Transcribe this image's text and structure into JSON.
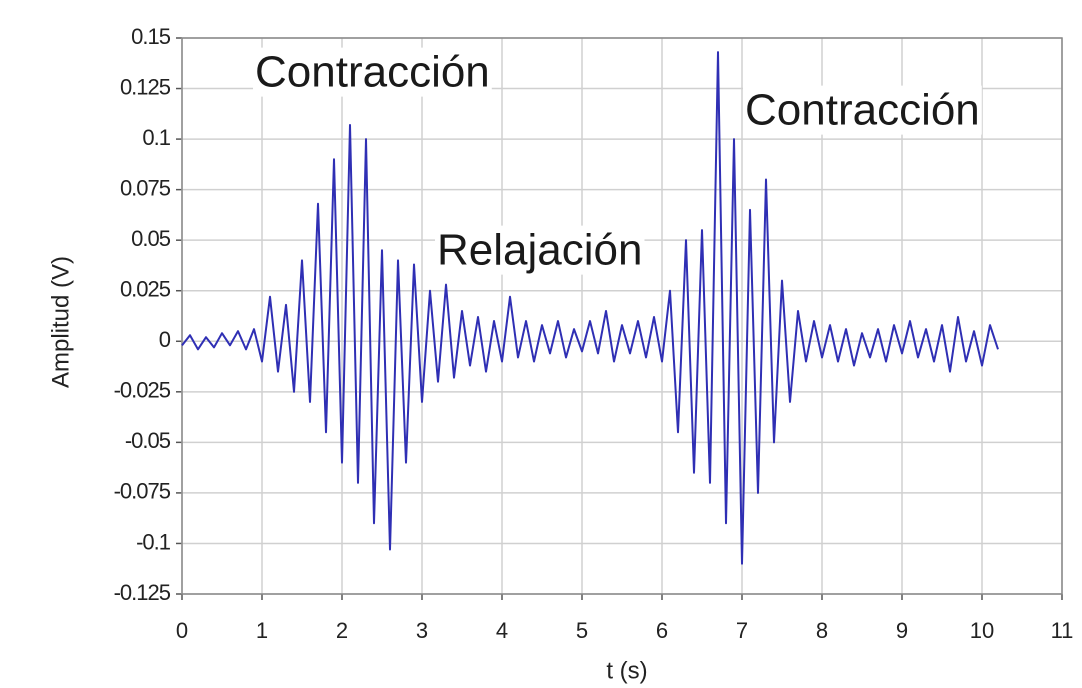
{
  "chart_data": {
    "type": "line",
    "x_label": "t (s)",
    "y_label": "Amplitud (V)",
    "annotations": [
      "Contracción",
      "Relajación",
      "Contracción"
    ],
    "x": [
      0,
      0.1,
      0.2,
      0.3,
      0.4,
      0.5,
      0.6,
      0.7,
      0.8,
      0.9,
      1,
      1.1,
      1.2,
      1.3,
      1.4,
      1.5,
      1.6,
      1.7,
      1.8,
      1.9,
      2,
      2.1,
      2.2,
      2.3,
      2.4,
      2.5,
      2.6,
      2.7,
      2.8,
      2.9,
      3,
      3.1,
      3.2,
      3.3,
      3.4,
      3.5,
      3.6,
      3.7,
      3.8,
      3.9,
      4,
      4.1,
      4.2,
      4.3,
      4.4,
      4.5,
      4.6,
      4.7,
      4.8,
      4.9,
      5,
      5.1,
      5.2,
      5.3,
      5.4,
      5.5,
      5.6,
      5.7,
      5.8,
      5.9,
      6,
      6.1,
      6.2,
      6.3,
      6.4,
      6.5,
      6.6,
      6.7,
      6.8,
      6.9,
      7,
      7.1,
      7.2,
      7.3,
      7.4,
      7.5,
      7.6,
      7.7,
      7.8,
      7.9,
      8,
      8.1,
      8.2,
      8.3,
      8.4,
      8.5,
      8.6,
      8.7,
      8.8,
      8.9,
      9,
      9.1,
      9.2,
      9.3,
      9.4,
      9.5,
      9.6,
      9.7,
      9.8,
      9.9,
      10,
      10.1,
      10.2
    ],
    "series": [
      {
        "name": "Amplitud",
        "color": "#2f2fb4",
        "values": [
          -0.002,
          0.003,
          -0.004,
          0.002,
          -0.003,
          0.004,
          -0.002,
          0.005,
          -0.004,
          0.006,
          -0.01,
          0.022,
          -0.015,
          0.018,
          -0.025,
          0.04,
          -0.03,
          0.068,
          -0.045,
          0.09,
          -0.06,
          0.107,
          -0.07,
          0.1,
          -0.09,
          0.045,
          -0.103,
          0.04,
          -0.06,
          0.038,
          -0.03,
          0.025,
          -0.02,
          0.028,
          -0.018,
          0.015,
          -0.012,
          0.012,
          -0.015,
          0.01,
          -0.01,
          0.022,
          -0.008,
          0.01,
          -0.01,
          0.008,
          -0.006,
          0.01,
          -0.008,
          0.006,
          -0.005,
          0.01,
          -0.006,
          0.015,
          -0.01,
          0.008,
          -0.006,
          0.01,
          -0.008,
          0.012,
          -0.01,
          0.025,
          -0.045,
          0.05,
          -0.065,
          0.055,
          -0.07,
          0.143,
          -0.09,
          0.1,
          -0.11,
          0.065,
          -0.075,
          0.08,
          -0.05,
          0.03,
          -0.03,
          0.015,
          -0.01,
          0.01,
          -0.008,
          0.008,
          -0.01,
          0.006,
          -0.012,
          0.004,
          -0.008,
          0.006,
          -0.01,
          0.008,
          -0.006,
          0.01,
          -0.008,
          0.006,
          -0.01,
          0.008,
          -0.015,
          0.012,
          -0.01,
          0.005,
          -0.012,
          0.008,
          -0.004
        ]
      }
    ],
    "xlim": [
      0,
      11
    ],
    "xticks": [
      0,
      1,
      2,
      3,
      4,
      5,
      6,
      7,
      8,
      9,
      10,
      11
    ],
    "ylim": [
      -0.125,
      0.15
    ],
    "yticks": [
      -0.125,
      -0.1,
      -0.075,
      -0.05,
      -0.025,
      0,
      0.025,
      0.05,
      0.075,
      0.1,
      0.125,
      0.15
    ],
    "grid": true
  }
}
